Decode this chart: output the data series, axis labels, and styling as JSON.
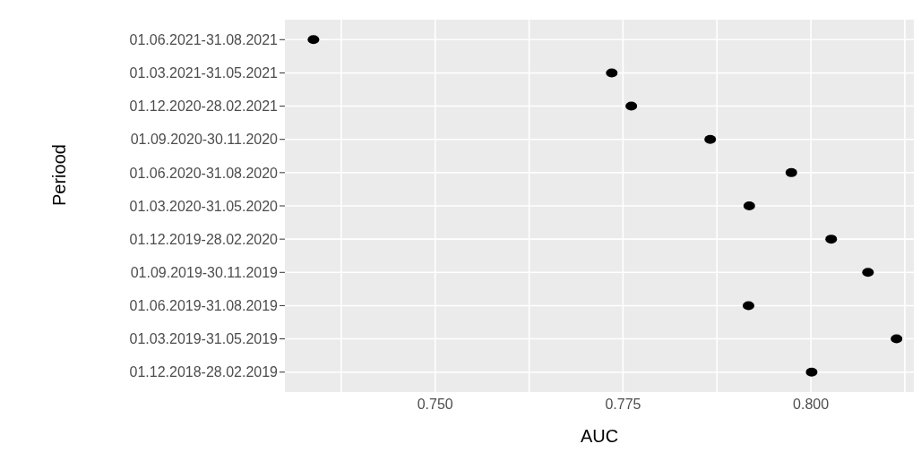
{
  "chart_data": {
    "type": "scatter",
    "orientation": "horizontal",
    "xlabel": "AUC",
    "ylabel": "Periood",
    "categories": [
      "01.06.2021-31.08.2021",
      "01.03.2021-31.05.2021",
      "01.12.2020-28.02.2021",
      "01.09.2020-30.11.2020",
      "01.06.2020-31.08.2020",
      "01.03.2020-31.05.2020",
      "01.12.2019-28.02.2020",
      "01.09.2019-30.11.2019",
      "01.06.2019-31.08.2019",
      "01.03.2019-31.05.2019",
      "01.12.2018-28.02.2019"
    ],
    "series": [
      {
        "color": "#000000",
        "values": [
          0.7338,
          0.7735,
          0.7761,
          0.7866,
          0.7974,
          0.7918,
          0.8027,
          0.8076,
          0.7917,
          0.8114,
          0.8001
        ]
      }
    ],
    "xlim": [
      0.73,
      0.8137
    ],
    "xticks": [
      {
        "value": 0.7375,
        "label": null
      },
      {
        "value": 0.75,
        "label": "0.750"
      },
      {
        "value": 0.7625,
        "label": null
      },
      {
        "value": 0.775,
        "label": "0.775"
      },
      {
        "value": 0.7875,
        "label": null
      },
      {
        "value": 0.8,
        "label": "0.800"
      },
      {
        "value": 0.8125,
        "label": null
      }
    ],
    "grid": true,
    "marker": "circle",
    "legend": false
  }
}
